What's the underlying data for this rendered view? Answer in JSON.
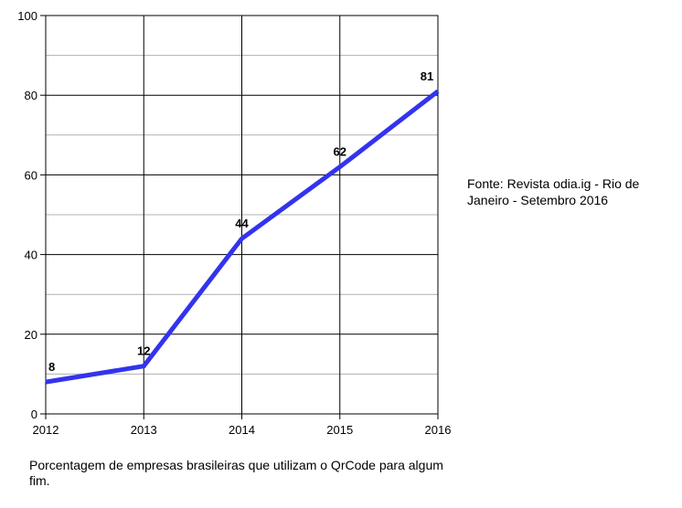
{
  "chart_data": {
    "type": "line",
    "x": [
      "2012",
      "2013",
      "2014",
      "2015",
      "2016"
    ],
    "series": [
      {
        "values": [
          8,
          12,
          44,
          62,
          81
        ],
        "color": "#3333ee"
      }
    ],
    "data_labels": [
      "8",
      "12",
      "44",
      "62",
      "81"
    ],
    "ylim": [
      0,
      100
    ],
    "yticks": [
      "0",
      "20",
      "40",
      "60",
      "80",
      "100"
    ],
    "grid": true,
    "title": "",
    "xlabel": "",
    "ylabel": ""
  },
  "source_note": "Fonte: Revista odia.ig - Rio de Janeiro - Setembro 2016",
  "caption": "Porcentagem de empresas brasileiras que utilizam o QrCode para algum fim."
}
